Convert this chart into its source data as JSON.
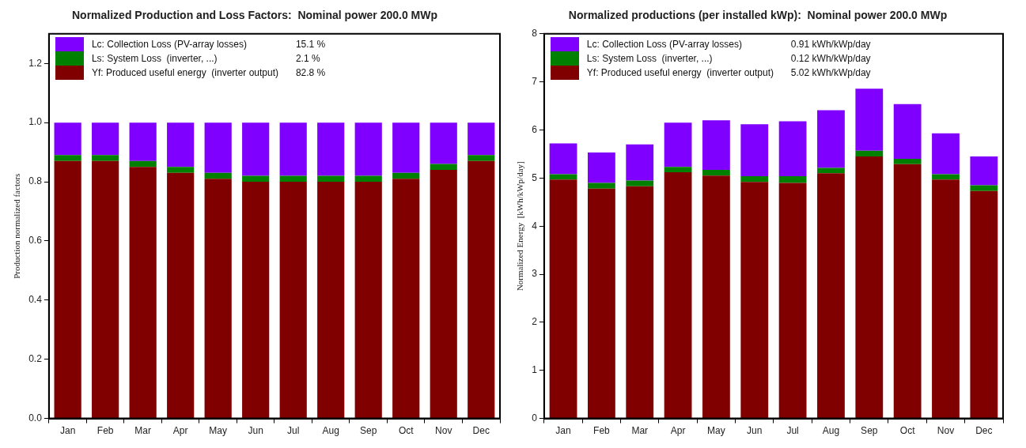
{
  "chart_data": [
    {
      "type": "bar",
      "title": "Normalized Production and Loss Factors:  Nominal power 200.0 MWp",
      "ylabel": "Production normalized factors",
      "categories": [
        "Jan",
        "Feb",
        "Mar",
        "Apr",
        "May",
        "Jun",
        "Jul",
        "Aug",
        "Sep",
        "Oct",
        "Nov",
        "Dec"
      ],
      "stacked": true,
      "legend": "top left",
      "ylim": [
        0,
        1.3
      ],
      "yticks": [
        {
          "value": 0,
          "label": "0.0"
        },
        0.2,
        0.4,
        0.6,
        0.8,
        {
          "value": 1,
          "label": "1.0"
        },
        1.2
      ],
      "series": [
        {
          "name": "Yf: Produced useful energy  (inverter output)",
          "color": "#800000",
          "values": [
            0.87,
            0.87,
            0.85,
            0.83,
            0.81,
            0.8,
            0.8,
            0.8,
            0.8,
            0.81,
            0.84,
            0.87
          ]
        },
        {
          "name": "Ls: System Loss  (inverter, ...)",
          "color": "#008000",
          "values": [
            0.02,
            0.02,
            0.02,
            0.02,
            0.02,
            0.02,
            0.02,
            0.02,
            0.02,
            0.02,
            0.02,
            0.02
          ]
        },
        {
          "name": "Lc: Collection Loss (PV-array losses)",
          "color": "#8000ff",
          "values": [
            0.11,
            0.11,
            0.13,
            0.15,
            0.17,
            0.18,
            0.18,
            0.18,
            0.18,
            0.17,
            0.14,
            0.11
          ]
        }
      ],
      "annotations": [
        "82.8 %",
        "2.1 %",
        "15.1 %"
      ]
    },
    {
      "type": "bar",
      "title": "Normalized productions (per installed kWp):  Nominal power 200.0 MWp",
      "ylabel": "Normalized Energy  [kWh/kWp/day]",
      "categories": [
        "Jan",
        "Feb",
        "Mar",
        "Apr",
        "May",
        "Jun",
        "Jul",
        "Aug",
        "Sep",
        "Oct",
        "Nov",
        "Dec"
      ],
      "stacked": true,
      "legend": "top left",
      "ylim": [
        0,
        8
      ],
      "yticks": [
        0,
        1,
        2,
        3,
        4,
        5,
        6,
        7,
        8
      ],
      "series": [
        {
          "name": "Yf: Produced useful energy  (inverter output)",
          "color": "#800000",
          "values": [
            4.97,
            4.78,
            4.83,
            5.12,
            5.05,
            4.92,
            4.9,
            5.1,
            5.45,
            5.29,
            4.97,
            4.73
          ]
        },
        {
          "name": "Ls: System Loss  (inverter, ...)",
          "color": "#008000",
          "values": [
            0.11,
            0.12,
            0.12,
            0.11,
            0.12,
            0.12,
            0.14,
            0.11,
            0.12,
            0.11,
            0.11,
            0.12
          ]
        },
        {
          "name": "Lc: Collection Loss (PV-array losses)",
          "color": "#8000ff",
          "values": [
            0.64,
            0.63,
            0.75,
            0.92,
            1.03,
            1.08,
            1.14,
            1.2,
            1.29,
            1.14,
            0.85,
            0.6
          ]
        }
      ],
      "annotations": [
        "5.02 kWh/kWp/day",
        "0.12 kWh/kWp/day",
        "0.91 kWh/kWp/day"
      ]
    }
  ]
}
